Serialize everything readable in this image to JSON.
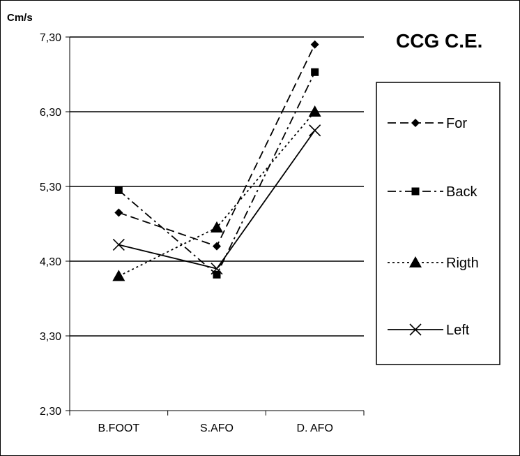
{
  "chart_data": {
    "type": "line",
    "title": "CCG C.E.",
    "ylabel": "Cm/s",
    "xlabel": "",
    "categories": [
      "B.FOOT",
      "S.AFO",
      "D. AFO"
    ],
    "yticks": [
      "2,30",
      "3,30",
      "4,30",
      "5,30",
      "6,30",
      "7,30"
    ],
    "ylim": [
      2.3,
      7.3
    ],
    "grid": true,
    "legend_position": "right",
    "series": [
      {
        "name": "For",
        "values": [
          4.95,
          4.5,
          7.2
        ],
        "marker": "diamond",
        "dash": "dashed"
      },
      {
        "name": "Back",
        "values": [
          5.25,
          4.12,
          6.83
        ],
        "marker": "square",
        "dash": "dash-dot"
      },
      {
        "name": "Rigth",
        "values": [
          4.1,
          4.75,
          6.3
        ],
        "marker": "triangle",
        "dash": "dotted"
      },
      {
        "name": "Left",
        "values": [
          4.52,
          4.2,
          6.05
        ],
        "marker": "x",
        "dash": "solid"
      }
    ]
  }
}
